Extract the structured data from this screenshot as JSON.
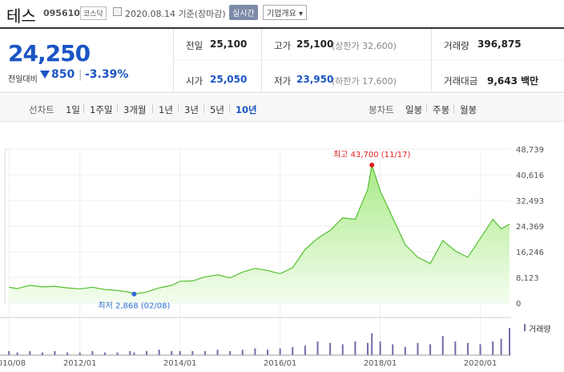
{
  "header": {
    "name": "테스",
    "code": "095610",
    "market": "코스닥",
    "date": "2020.08.14 기준(장마감)",
    "realtime": "실시간",
    "company": "기업개요 ▾"
  },
  "summary": {
    "price": "24,250",
    "change_label": "전일대비",
    "change": "850",
    "change_sep": "|",
    "change_pct": "-3.39%",
    "prev_close_label": "전일",
    "prev_close": "25,100",
    "high_label": "고가",
    "high": "25,100",
    "upper_limit": "(상한가 32,600)",
    "volume_label": "거래량",
    "volume": "396,875",
    "open_label": "시가",
    "open": "25,050",
    "low_label": "저가",
    "low": "23,950",
    "lower_limit": "(하한가 17,600)",
    "amount_label": "거래대금",
    "amount": "9,643 백만"
  },
  "period": {
    "line_label": "선차트",
    "line_items": [
      "1일",
      "1주일",
      "3개월",
      "1년",
      "3년",
      "5년",
      "10년"
    ],
    "selected": "10년",
    "candle_label": "봉차트",
    "candle_items": [
      "일봉",
      "주봉",
      "월봉"
    ]
  },
  "colors": {
    "accent": "#1a55c4",
    "down": "#1a55c4",
    "line": "#4fc12e",
    "fill": "#b6ee9a",
    "max": "#e02020",
    "min": "#2e6fd0"
  },
  "chart_data": {
    "type": "area",
    "title": "",
    "y_ticks": [
      "48,739",
      "40,616",
      "32,493",
      "24,369",
      "16,246",
      "8,123",
      "0"
    ],
    "ylim": [
      0,
      48739
    ],
    "x_ticks": [
      "2010/08",
      "2012/01",
      "2014/01",
      "2016/01",
      "2018/01",
      "2020/01"
    ],
    "max_label": "최고 43,700 (11/17)",
    "min_label": "최저 2,868 (02/08)",
    "volume_label": "거래량",
    "x": [
      "2010/08",
      "2010/10",
      "2011/01",
      "2011/04",
      "2011/07",
      "2011/10",
      "2012/01",
      "2012/04",
      "2012/07",
      "2012/10",
      "2013/01",
      "2013/02",
      "2013/05",
      "2013/08",
      "2013/11",
      "2014/01",
      "2014/04",
      "2014/07",
      "2014/10",
      "2015/01",
      "2015/04",
      "2015/07",
      "2015/10",
      "2016/01",
      "2016/04",
      "2016/07",
      "2016/10",
      "2017/01",
      "2017/04",
      "2017/07",
      "2017/10",
      "2017/11",
      "2018/01",
      "2018/04",
      "2018/07",
      "2018/10",
      "2019/01",
      "2019/04",
      "2019/07",
      "2019/10",
      "2020/01",
      "2020/04",
      "2020/06",
      "2020/08"
    ],
    "values": [
      5000,
      4600,
      5600,
      5100,
      5300,
      4800,
      4500,
      5000,
      4300,
      4000,
      3400,
      2868,
      3500,
      4800,
      5600,
      6900,
      7000,
      8300,
      8900,
      8000,
      9800,
      11000,
      10300,
      9300,
      11200,
      17000,
      20500,
      23000,
      27000,
      26500,
      36000,
      43700,
      35500,
      27000,
      18500,
      14500,
      12500,
      19800,
      16500,
      14500,
      20500,
      26500,
      23500,
      25000
    ],
    "volume": [
      3,
      2,
      3,
      2,
      3,
      2,
      2,
      3,
      2,
      2,
      3,
      2,
      3,
      4,
      3,
      3,
      3,
      3,
      4,
      3,
      4,
      5,
      4,
      5,
      6,
      7,
      10,
      9,
      8,
      10,
      9,
      16,
      10,
      8,
      6,
      9,
      8,
      14,
      10,
      9,
      8,
      10,
      12,
      20
    ]
  }
}
